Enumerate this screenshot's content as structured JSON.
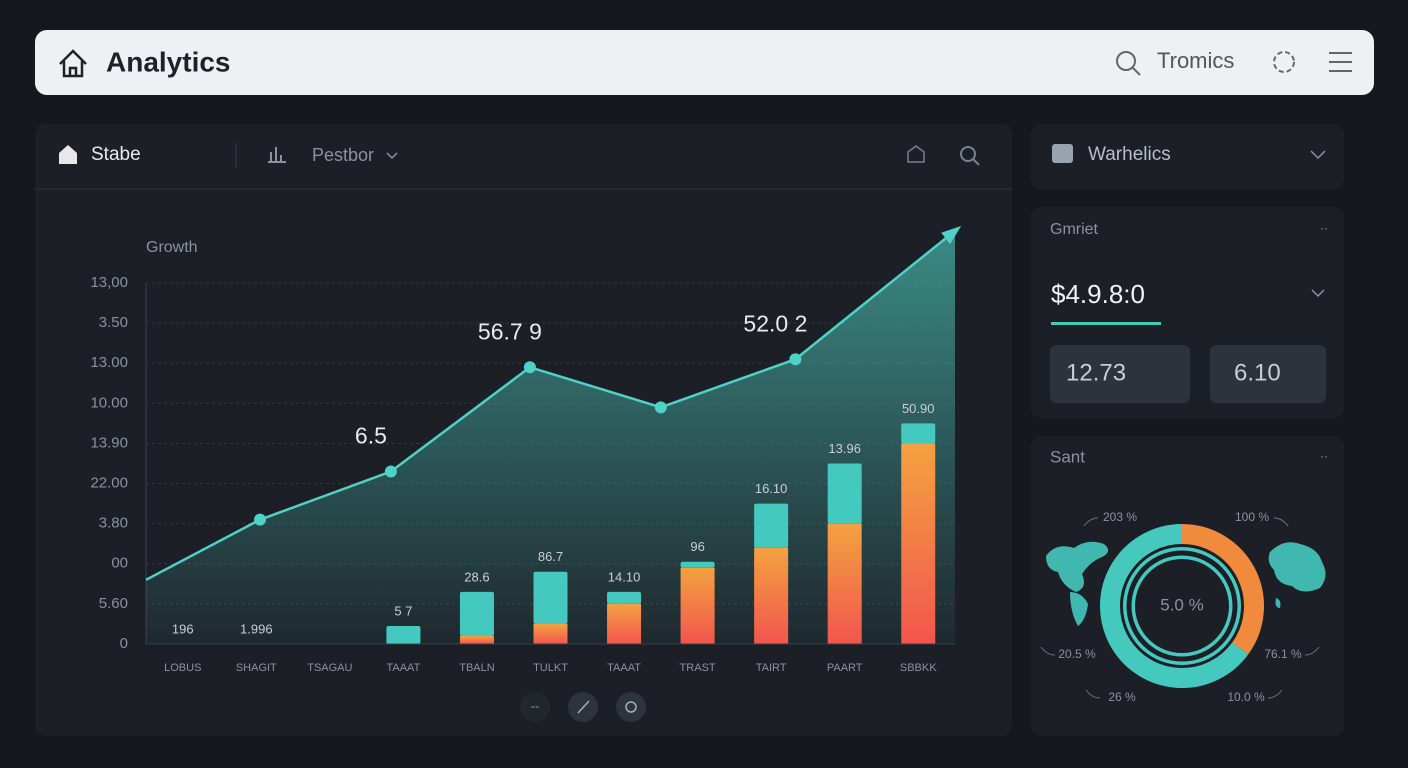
{
  "header": {
    "title": "Analytics",
    "search": "Tromics"
  },
  "main_panel": {
    "tabs": [
      "Stabe",
      "Pestbor"
    ],
    "pager": "--",
    "chart": {
      "type": "bar-line",
      "title": "Growth",
      "categories": [
        "LOBUS",
        "SHAGIT",
        "TSAGAU",
        "TAAAT",
        "TBALN",
        "TULKT",
        "TAAAT",
        "TRAST",
        "TAIRT",
        "PAART",
        "SBBKK"
      ],
      "ylim": [
        0,
        9
      ],
      "yticks": [
        0,
        {
          "value": 1,
          "label": "5.60"
        },
        {
          "value": 2,
          "label": "00"
        },
        {
          "value": 3,
          "label": "3.80"
        },
        {
          "value": 4,
          "label": "22.00"
        },
        {
          "value": 5,
          "label": "13.90"
        },
        {
          "value": 6,
          "label": "10.00"
        },
        {
          "value": 7,
          "label": "13.00"
        },
        {
          "value": 8,
          "label": "3.50"
        },
        {
          "value": 9,
          "label": "13,00"
        }
      ],
      "grid": true,
      "xlim": [
        -0.5,
        10.5
      ],
      "line": {
        "color": "#4fd1c5",
        "x": [
          -0.5,
          1.05,
          2.83,
          4.72,
          6.5,
          8.33,
          10.5
        ],
        "values": [
          1.6,
          3.1,
          4.3,
          6.9,
          5.9,
          7.1,
          10.3
        ],
        "labels": [
          null,
          null,
          "6.5",
          "56.7 9",
          null,
          "52.0 2",
          null
        ]
      },
      "series": [
        {
          "color": "#f08a3c",
          "values": [
            null,
            null,
            null,
            null,
            0.2,
            0.5,
            1.0,
            1.9,
            2.4,
            3.0,
            5.0
          ]
        },
        {
          "color": "#45c9bf",
          "values": [
            null,
            null,
            null,
            0.45,
            1.1,
            1.3,
            0.3,
            0.15,
            1.1,
            1.5,
            0.5
          ]
        }
      ],
      "bar_labels": [
        "196",
        "1.996",
        null,
        "5 7",
        "28.6",
        "86.7",
        "14.10",
        "96",
        "16.10",
        "13.96",
        "50.90"
      ]
    }
  },
  "side_panel": {
    "dropdown": "Warhelics",
    "card1": {
      "title": "Gmriet",
      "value": "$4.9.8:0",
      "stats": [
        "12.73",
        "6.10"
      ]
    },
    "card2": {
      "title": "Sant",
      "chart": {
        "type": "donut",
        "values": [
          35,
          65
        ],
        "colors": [
          "#f08a3c",
          "#45c9bf"
        ],
        "center_label": "5.0 %",
        "callouts": [
          "203 %",
          "100 %",
          "20.5 %",
          "76.1 %",
          "26 %",
          "10.0 %"
        ]
      }
    }
  }
}
